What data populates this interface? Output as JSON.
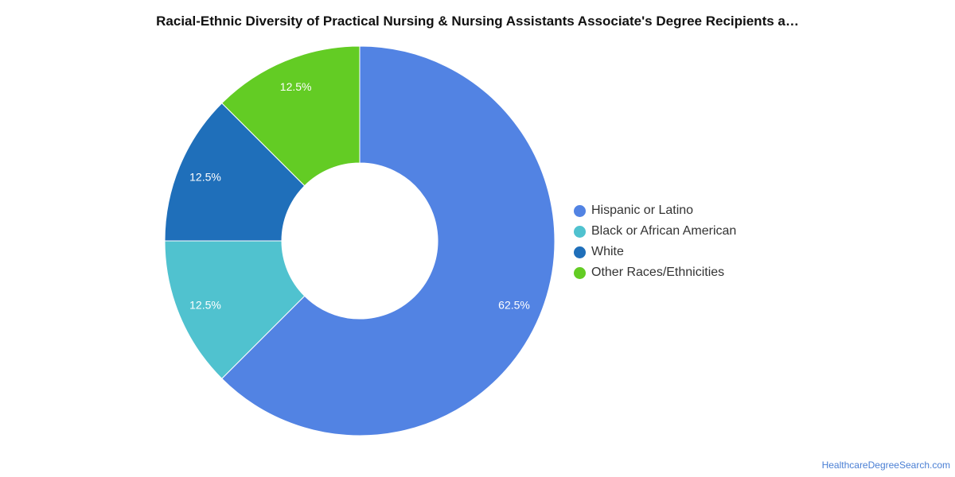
{
  "chart_data": {
    "type": "pie",
    "title": "Racial-Ethnic Diversity of Practical Nursing & Nursing Assistants Associate's Degree Recipients a…",
    "slices": [
      {
        "label": "Hispanic or Latino",
        "value": 62.5,
        "display": "62.5%",
        "color": "#5283e3"
      },
      {
        "label": "Black or African American",
        "value": 12.5,
        "display": "12.5%",
        "color": "#50c2cf"
      },
      {
        "label": "White",
        "value": 12.5,
        "display": "12.5%",
        "color": "#1f6fba"
      },
      {
        "label": "Other Races/Ethnicities",
        "value": 12.5,
        "display": "12.5%",
        "color": "#63cc24"
      }
    ],
    "donut": true,
    "legend_position": "right"
  },
  "footer": {
    "source_text": "HealthcareDegreeSearch.com"
  }
}
